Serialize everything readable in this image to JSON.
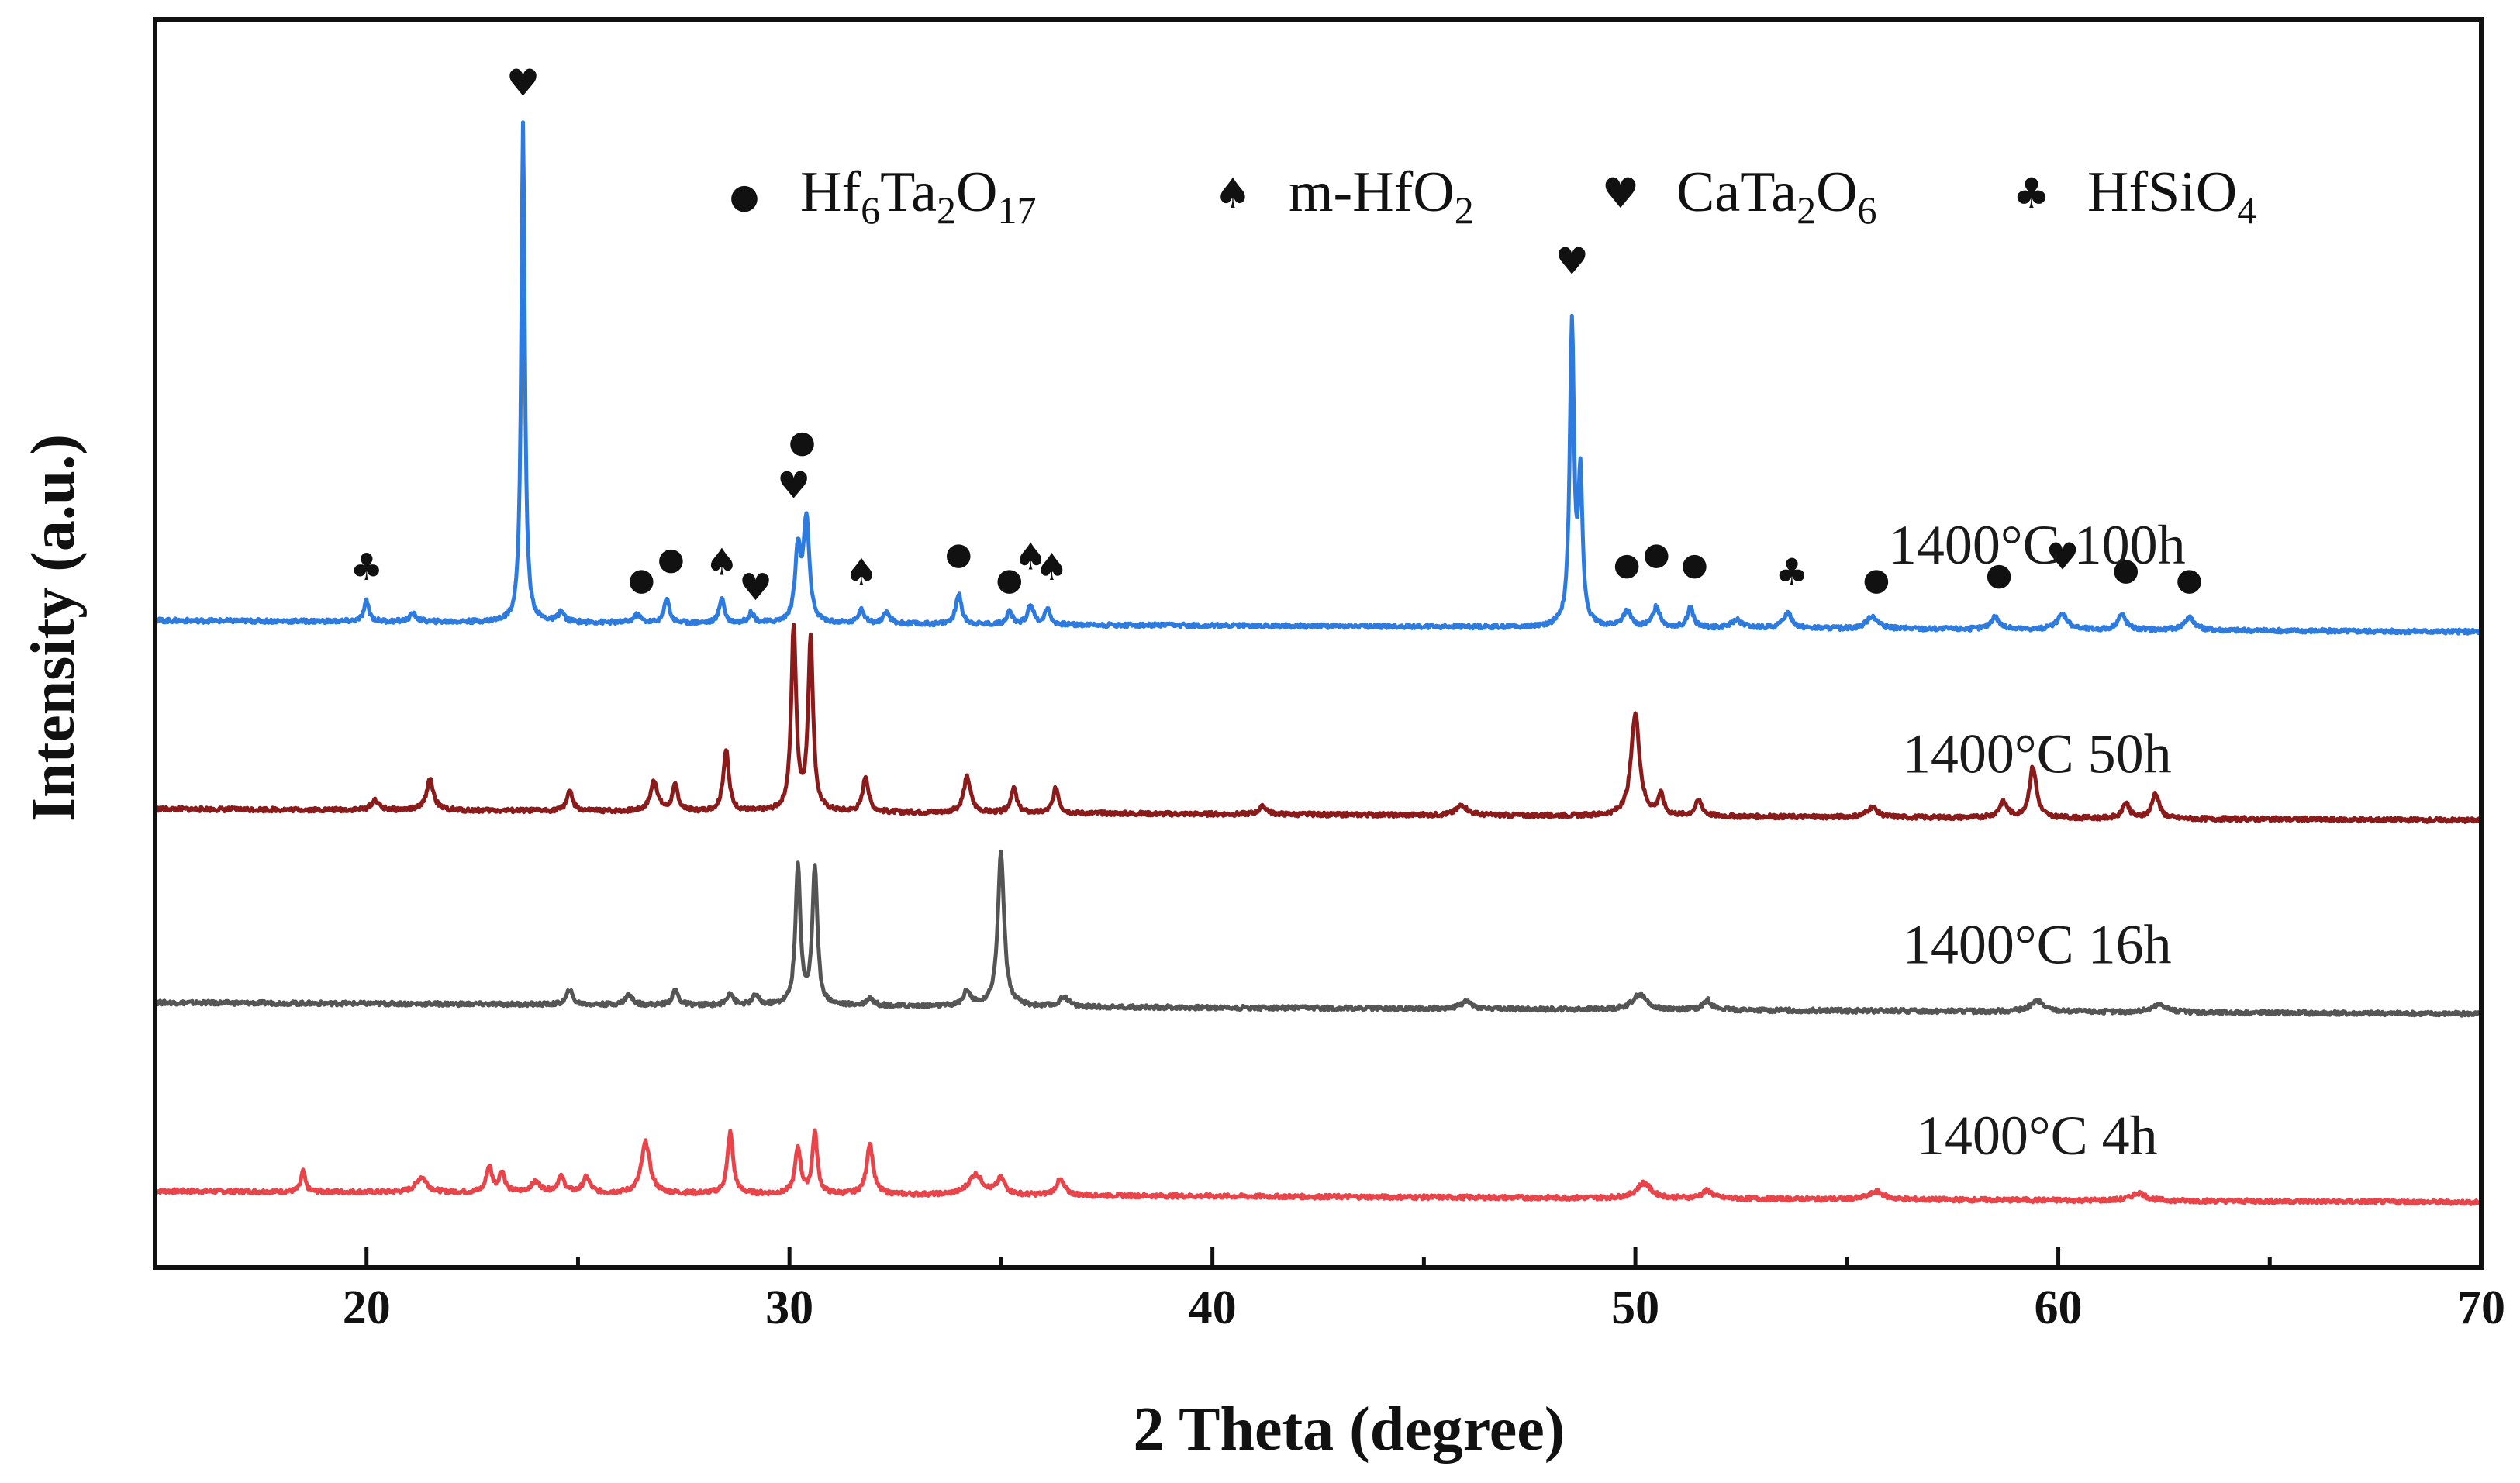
{
  "chart_data": {
    "type": "line",
    "title": "",
    "xlabel": "2 Theta (degree)",
    "ylabel": "Intensity (a.u.)",
    "xlim": [
      15,
      70
    ],
    "xticks": [
      20,
      30,
      40,
      50,
      60,
      70
    ],
    "yticks_shown": false,
    "legend": {
      "position": "top",
      "entries": [
        {
          "symbol": "●",
          "name": "circle",
          "label": "Hf",
          "sub1": "6",
          "label2": "Ta",
          "sub2": "2",
          "label3": "O",
          "sub3": "17"
        },
        {
          "symbol": "♠",
          "name": "spade",
          "label": "m-HfO",
          "sub1": "2"
        },
        {
          "symbol": "♥",
          "name": "heart",
          "label": "CaTa",
          "sub1": "2",
          "label2": "O",
          "sub2": "6"
        },
        {
          "symbol": "♣",
          "name": "club",
          "label": "HfSiO",
          "sub1": "4"
        }
      ]
    },
    "series": [
      {
        "name": "1400°C 4h",
        "color": "#e8444a",
        "baseline": 0.0,
        "peaks": [
          [
            18.5,
            0.04,
            0.06
          ],
          [
            21.3,
            0.03,
            0.15
          ],
          [
            22.9,
            0.05,
            0.08
          ],
          [
            23.2,
            0.04,
            0.08
          ],
          [
            24.0,
            0.02,
            0.15
          ],
          [
            24.6,
            0.03,
            0.1
          ],
          [
            25.2,
            0.03,
            0.1
          ],
          [
            26.6,
            0.1,
            0.12
          ],
          [
            28.6,
            0.12,
            0.08
          ],
          [
            30.2,
            0.09,
            0.08
          ],
          [
            30.6,
            0.12,
            0.07
          ],
          [
            31.9,
            0.1,
            0.09
          ],
          [
            34.4,
            0.04,
            0.2
          ],
          [
            35.0,
            0.03,
            0.12
          ],
          [
            36.4,
            0.03,
            0.12
          ],
          [
            50.2,
            0.03,
            0.2
          ],
          [
            51.7,
            0.015,
            0.15
          ],
          [
            55.7,
            0.015,
            0.2
          ],
          [
            61.9,
            0.015,
            0.2
          ]
        ]
      },
      {
        "name": "1400°C 16h",
        "color": "#555555",
        "baseline": 0.37,
        "peaks": [
          [
            24.8,
            0.03,
            0.08
          ],
          [
            26.2,
            0.02,
            0.1
          ],
          [
            27.3,
            0.03,
            0.08
          ],
          [
            28.6,
            0.025,
            0.08
          ],
          [
            29.2,
            0.02,
            0.08
          ],
          [
            30.2,
            0.27,
            0.07
          ],
          [
            30.6,
            0.27,
            0.07
          ],
          [
            31.9,
            0.015,
            0.1
          ],
          [
            34.2,
            0.03,
            0.1
          ],
          [
            35.0,
            0.3,
            0.09
          ],
          [
            36.5,
            0.02,
            0.12
          ],
          [
            46.0,
            0.015,
            0.15
          ],
          [
            50.1,
            0.03,
            0.2
          ],
          [
            51.7,
            0.02,
            0.12
          ],
          [
            59.5,
            0.02,
            0.2
          ],
          [
            62.4,
            0.015,
            0.2
          ]
        ]
      },
      {
        "name": "1400°C 50h",
        "color": "#8b1a1a",
        "baseline": 0.75,
        "peaks": [
          [
            20.2,
            0.02,
            0.1
          ],
          [
            21.5,
            0.06,
            0.1
          ],
          [
            24.8,
            0.04,
            0.08
          ],
          [
            26.8,
            0.06,
            0.1
          ],
          [
            27.3,
            0.05,
            0.08
          ],
          [
            28.5,
            0.12,
            0.08
          ],
          [
            30.1,
            0.36,
            0.07
          ],
          [
            30.5,
            0.34,
            0.07
          ],
          [
            31.8,
            0.07,
            0.08
          ],
          [
            34.2,
            0.07,
            0.1
          ],
          [
            35.3,
            0.05,
            0.08
          ],
          [
            36.3,
            0.05,
            0.08
          ],
          [
            41.2,
            0.015,
            0.12
          ],
          [
            45.9,
            0.02,
            0.15
          ],
          [
            50.0,
            0.2,
            0.12
          ],
          [
            50.6,
            0.04,
            0.08
          ],
          [
            51.5,
            0.03,
            0.1
          ],
          [
            55.6,
            0.02,
            0.15
          ],
          [
            58.7,
            0.03,
            0.12
          ],
          [
            59.4,
            0.1,
            0.1
          ],
          [
            61.6,
            0.03,
            0.1
          ],
          [
            62.3,
            0.05,
            0.1
          ]
        ]
      },
      {
        "name": "1400°C 100h",
        "color": "#2e7be0",
        "baseline": 1.12,
        "peaks": [
          [
            20.0,
            0.04,
            0.07
          ],
          [
            21.1,
            0.015,
            0.1
          ],
          [
            23.7,
            0.98,
            0.05
          ],
          [
            24.6,
            0.02,
            0.08
          ],
          [
            26.4,
            0.015,
            0.1
          ],
          [
            27.1,
            0.05,
            0.07
          ],
          [
            28.4,
            0.05,
            0.07
          ],
          [
            29.1,
            0.02,
            0.08
          ],
          [
            30.2,
            0.14,
            0.08
          ],
          [
            30.4,
            0.2,
            0.08
          ],
          [
            31.7,
            0.03,
            0.08
          ],
          [
            32.3,
            0.02,
            0.1
          ],
          [
            34.0,
            0.06,
            0.08
          ],
          [
            35.2,
            0.025,
            0.08
          ],
          [
            35.7,
            0.04,
            0.08
          ],
          [
            36.1,
            0.03,
            0.08
          ],
          [
            48.5,
            0.59,
            0.06
          ],
          [
            48.7,
            0.28,
            0.06
          ],
          [
            49.8,
            0.03,
            0.12
          ],
          [
            50.5,
            0.04,
            0.1
          ],
          [
            51.3,
            0.04,
            0.08
          ],
          [
            52.4,
            0.015,
            0.15
          ],
          [
            53.6,
            0.03,
            0.12
          ],
          [
            55.6,
            0.025,
            0.15
          ],
          [
            58.5,
            0.025,
            0.12
          ],
          [
            60.1,
            0.03,
            0.15
          ],
          [
            61.5,
            0.03,
            0.12
          ],
          [
            63.1,
            0.025,
            0.15
          ]
        ]
      }
    ],
    "annotations": [
      {
        "x": 20.0,
        "y": 1.2,
        "symbol": "♣"
      },
      {
        "x": 23.7,
        "y": 2.15,
        "symbol": "♥"
      },
      {
        "x": 26.5,
        "y": 1.18,
        "symbol": "●"
      },
      {
        "x": 27.2,
        "y": 1.22,
        "symbol": "●"
      },
      {
        "x": 28.4,
        "y": 1.21,
        "symbol": "♠"
      },
      {
        "x": 29.2,
        "y": 1.16,
        "symbol": "♥"
      },
      {
        "x": 30.1,
        "y": 1.36,
        "symbol": "♥"
      },
      {
        "x": 30.3,
        "y": 1.45,
        "symbol": "●"
      },
      {
        "x": 31.7,
        "y": 1.19,
        "symbol": "♠"
      },
      {
        "x": 34.0,
        "y": 1.23,
        "symbol": "●"
      },
      {
        "x": 35.2,
        "y": 1.18,
        "symbol": "●"
      },
      {
        "x": 35.7,
        "y": 1.22,
        "symbol": "♠"
      },
      {
        "x": 36.2,
        "y": 1.2,
        "symbol": "♠"
      },
      {
        "x": 48.5,
        "y": 1.8,
        "symbol": "♥"
      },
      {
        "x": 49.8,
        "y": 1.21,
        "symbol": "●"
      },
      {
        "x": 50.5,
        "y": 1.23,
        "symbol": "●"
      },
      {
        "x": 51.4,
        "y": 1.21,
        "symbol": "●"
      },
      {
        "x": 53.7,
        "y": 1.19,
        "symbol": "♣"
      },
      {
        "x": 55.7,
        "y": 1.18,
        "symbol": "●"
      },
      {
        "x": 58.6,
        "y": 1.19,
        "symbol": "●"
      },
      {
        "x": 60.1,
        "y": 1.22,
        "symbol": "♥"
      },
      {
        "x": 61.6,
        "y": 1.2,
        "symbol": "●"
      },
      {
        "x": 63.1,
        "y": 1.18,
        "symbol": "●"
      }
    ],
    "ylim": [
      -0.15,
      2.3
    ]
  }
}
